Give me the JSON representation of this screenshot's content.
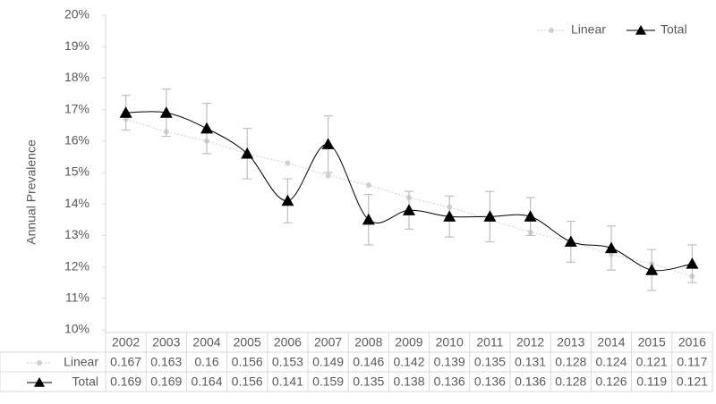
{
  "chart_data": {
    "type": "line",
    "y_label": "Annual Prevalence",
    "categories": [
      "2002",
      "2003",
      "2004",
      "2005",
      "2006",
      "2007",
      "2008",
      "2009",
      "2010",
      "2011",
      "2012",
      "2013",
      "2014",
      "2015",
      "2016"
    ],
    "series": [
      {
        "name": "Linear",
        "color": "#d0d0d0",
        "values": [
          0.167,
          0.163,
          0.16,
          0.156,
          0.153,
          0.149,
          0.146,
          0.142,
          0.139,
          0.135,
          0.131,
          0.128,
          0.124,
          0.121,
          0.117
        ]
      },
      {
        "name": "Total",
        "color": "#000000",
        "values": [
          0.169,
          0.169,
          0.164,
          0.156,
          0.141,
          0.159,
          0.135,
          0.138,
          0.136,
          0.136,
          0.136,
          0.128,
          0.126,
          0.119,
          0.121
        ],
        "errors": [
          0.0055,
          0.0075,
          0.008,
          0.008,
          0.007,
          0.009,
          0.008,
          0.006,
          0.0065,
          0.008,
          0.006,
          0.0065,
          0.007,
          0.0065,
          0.006
        ]
      }
    ],
    "ylim": [
      0.1,
      0.2
    ],
    "yticks": [
      {
        "value": 0.1,
        "label": "10%"
      },
      {
        "value": 0.11,
        "label": "11%"
      },
      {
        "value": 0.12,
        "label": "12%"
      },
      {
        "value": 0.13,
        "label": "13%"
      },
      {
        "value": 0.14,
        "label": "14%"
      },
      {
        "value": 0.15,
        "label": "15%"
      },
      {
        "value": 0.16,
        "label": "16%"
      },
      {
        "value": 0.17,
        "label": "17%"
      },
      {
        "value": 0.18,
        "label": "18%"
      },
      {
        "value": 0.19,
        "label": "19%"
      },
      {
        "value": 0.2,
        "label": "20%"
      }
    ],
    "legend": "top-right",
    "grid": false
  }
}
